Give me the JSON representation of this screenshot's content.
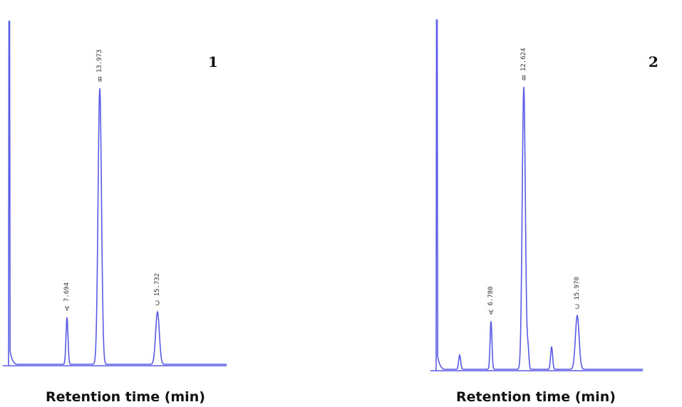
{
  "chart_data": [
    {
      "type": "line",
      "panel_label": "1",
      "xlabel": "Retention time (min)",
      "ylabel": "",
      "trace_color": "#5a5ae6",
      "peaks": [
        {
          "letter": "A",
          "time": "7.694",
          "rt": 7.694,
          "height": 0.17
        },
        {
          "letter": "B",
          "time": "13.973",
          "rt": 13.973,
          "height": 1.0
        },
        {
          "letter": "C",
          "time": "15.732",
          "rt": 15.732,
          "height": 0.19
        }
      ],
      "unlabeled_peaks": []
    },
    {
      "type": "line",
      "panel_label": "2",
      "xlabel": "Retention time (min)",
      "ylabel": "",
      "trace_color": "#5a5ae6",
      "peaks": [
        {
          "letter": "A",
          "time": "6.780",
          "rt": 6.78,
          "height": 0.17
        },
        {
          "letter": "B",
          "time": "12.624",
          "rt": 12.624,
          "height": 1.0
        },
        {
          "letter": "C",
          "time": "15.970",
          "rt": 15.97,
          "height": 0.19
        }
      ],
      "unlabeled_peaks": [
        {
          "height": 0.05
        },
        {
          "height": 0.07
        },
        {
          "height": 0.08
        }
      ]
    }
  ]
}
